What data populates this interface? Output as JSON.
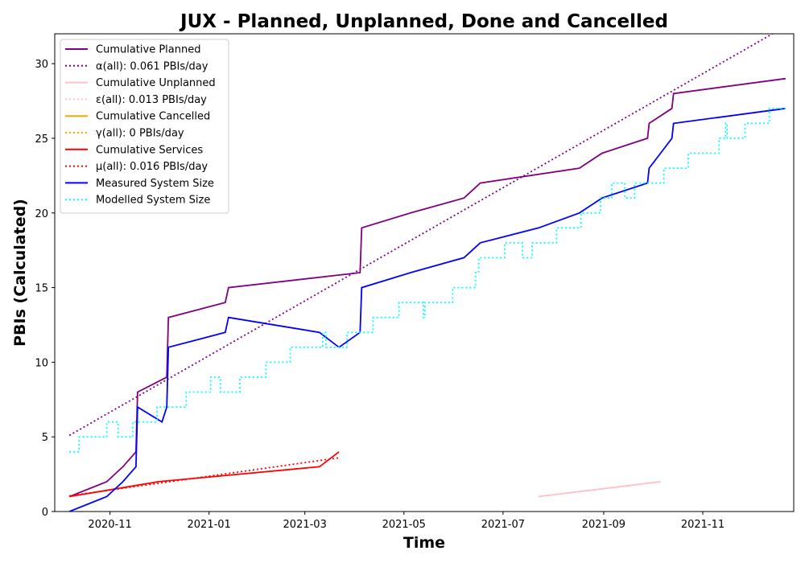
{
  "chart_data": {
    "type": "line",
    "title": "JUX - Planned, Unplanned, Done  and Cancelled",
    "xlabel": "Time",
    "ylabel": "PBIs (Calculated)",
    "xlim": [
      "2020-09-28",
      "2021-12-27"
    ],
    "ylim": [
      0,
      32
    ],
    "x_ticks": [
      {
        "date": "2020-11-01",
        "label": "2020-11"
      },
      {
        "date": "2021-01-01",
        "label": "2021-01"
      },
      {
        "date": "2021-03-01",
        "label": "2021-03"
      },
      {
        "date": "2021-05-01",
        "label": "2021-05"
      },
      {
        "date": "2021-07-01",
        "label": "2021-07"
      },
      {
        "date": "2021-09-01",
        "label": "2021-09"
      },
      {
        "date": "2021-11-01",
        "label": "2021-11"
      }
    ],
    "y_ticks": [
      0,
      5,
      10,
      15,
      20,
      25,
      30
    ],
    "grid": false,
    "legend_position": "top-left",
    "series": [
      {
        "name": "Cumulative Planned",
        "style": "solid",
        "color": "#800080",
        "points": [
          [
            "2020-10-07",
            1
          ],
          [
            "2020-10-30",
            2
          ],
          [
            "2020-11-09",
            3
          ],
          [
            "2020-11-17",
            4
          ],
          [
            "2020-11-18",
            8
          ],
          [
            "2020-12-06",
            9
          ],
          [
            "2020-12-07",
            13
          ],
          [
            "2021-01-11",
            14
          ],
          [
            "2021-01-13",
            15
          ],
          [
            "2021-04-04",
            16
          ],
          [
            "2021-04-05",
            19
          ],
          [
            "2021-05-05",
            20
          ],
          [
            "2021-06-07",
            21
          ],
          [
            "2021-06-17",
            22
          ],
          [
            "2021-08-17",
            23
          ],
          [
            "2021-08-31",
            24
          ],
          [
            "2021-09-28",
            25
          ],
          [
            "2021-09-29",
            26
          ],
          [
            "2021-10-13",
            27
          ],
          [
            "2021-10-14",
            28
          ],
          [
            "2021-12-22",
            29
          ]
        ]
      },
      {
        "name": "α(all): 0.061 PBIs/day",
        "style": "dotted",
        "color": "#800080",
        "points": [
          [
            "2020-10-07",
            5.1
          ],
          [
            "2021-12-22",
            32.5
          ]
        ]
      },
      {
        "name": "Cumulative Unplanned",
        "style": "solid",
        "color": "#ffc0cb",
        "points": [
          [
            "2021-07-23",
            1
          ],
          [
            "2021-10-06",
            2
          ]
        ]
      },
      {
        "name": "ε(all): 0.013 PBIs/day",
        "style": "dotted",
        "color": "#ffc0cb",
        "points": [
          [
            "2021-07-23",
            1
          ],
          [
            "2021-10-06",
            2
          ]
        ]
      },
      {
        "name": "Cumulative Cancelled",
        "style": "solid",
        "color": "#ffa500",
        "points": []
      },
      {
        "name": "γ(all): 0 PBIs/day",
        "style": "dotted",
        "color": "#ffa500",
        "points": []
      },
      {
        "name": "Cumulative Services",
        "style": "solid",
        "color": "#ff0000",
        "points": [
          [
            "2020-10-07",
            1
          ],
          [
            "2020-12-01",
            2
          ],
          [
            "2021-03-10",
            3
          ],
          [
            "2021-03-22",
            4
          ]
        ]
      },
      {
        "name": "μ(all): 0.016 PBIs/day",
        "style": "dotted",
        "color": "#ff0000",
        "points": [
          [
            "2020-10-07",
            1.05
          ],
          [
            "2021-03-22",
            3.6
          ]
        ]
      },
      {
        "name": "Measured System Size",
        "style": "solid",
        "color": "#0000ff",
        "points": [
          [
            "2020-10-07",
            0
          ],
          [
            "2020-10-30",
            1
          ],
          [
            "2020-11-09",
            2
          ],
          [
            "2020-11-17",
            3
          ],
          [
            "2020-11-18",
            7
          ],
          [
            "2020-12-03",
            6
          ],
          [
            "2020-12-06",
            7
          ],
          [
            "2020-12-07",
            11
          ],
          [
            "2021-01-11",
            12
          ],
          [
            "2021-01-13",
            13
          ],
          [
            "2021-03-10",
            12
          ],
          [
            "2021-03-22",
            11
          ],
          [
            "2021-04-04",
            12
          ],
          [
            "2021-04-05",
            15
          ],
          [
            "2021-05-05",
            16
          ],
          [
            "2021-06-07",
            17
          ],
          [
            "2021-06-17",
            18
          ],
          [
            "2021-07-23",
            19
          ],
          [
            "2021-08-17",
            20
          ],
          [
            "2021-08-31",
            21
          ],
          [
            "2021-09-28",
            22
          ],
          [
            "2021-09-29",
            23
          ],
          [
            "2021-10-06",
            24
          ],
          [
            "2021-10-13",
            25
          ],
          [
            "2021-10-14",
            26
          ],
          [
            "2021-12-22",
            27
          ]
        ]
      },
      {
        "name": "Modelled System Size",
        "style": "dotted",
        "color": "#00ffff",
        "step": true,
        "points": [
          [
            "2020-10-07",
            4
          ],
          [
            "2020-10-13",
            5
          ],
          [
            "2020-10-30",
            6
          ],
          [
            "2020-11-06",
            5
          ],
          [
            "2020-11-15",
            6
          ],
          [
            "2020-11-30",
            7
          ],
          [
            "2020-12-18",
            8
          ],
          [
            "2021-01-02",
            9
          ],
          [
            "2021-01-08",
            8
          ],
          [
            "2021-01-20",
            9
          ],
          [
            "2021-02-05",
            10
          ],
          [
            "2021-02-20",
            11
          ],
          [
            "2021-03-12",
            12
          ],
          [
            "2021-03-14",
            11
          ],
          [
            "2021-03-27",
            12
          ],
          [
            "2021-04-12",
            13
          ],
          [
            "2021-04-28",
            14
          ],
          [
            "2021-05-13",
            13
          ],
          [
            "2021-05-14",
            14
          ],
          [
            "2021-05-31",
            15
          ],
          [
            "2021-06-14",
            16
          ],
          [
            "2021-06-16",
            17
          ],
          [
            "2021-07-02",
            18
          ],
          [
            "2021-07-13",
            17
          ],
          [
            "2021-07-19",
            18
          ],
          [
            "2021-08-03",
            19
          ],
          [
            "2021-08-18",
            20
          ],
          [
            "2021-08-30",
            21
          ],
          [
            "2021-09-06",
            22
          ],
          [
            "2021-09-14",
            21
          ],
          [
            "2021-09-20",
            22
          ],
          [
            "2021-10-08",
            23
          ],
          [
            "2021-10-23",
            24
          ],
          [
            "2021-11-11",
            25
          ],
          [
            "2021-11-15",
            26
          ],
          [
            "2021-11-16",
            25
          ],
          [
            "2021-11-27",
            26
          ],
          [
            "2021-12-12",
            27
          ],
          [
            "2021-12-22",
            27
          ]
        ]
      }
    ]
  }
}
